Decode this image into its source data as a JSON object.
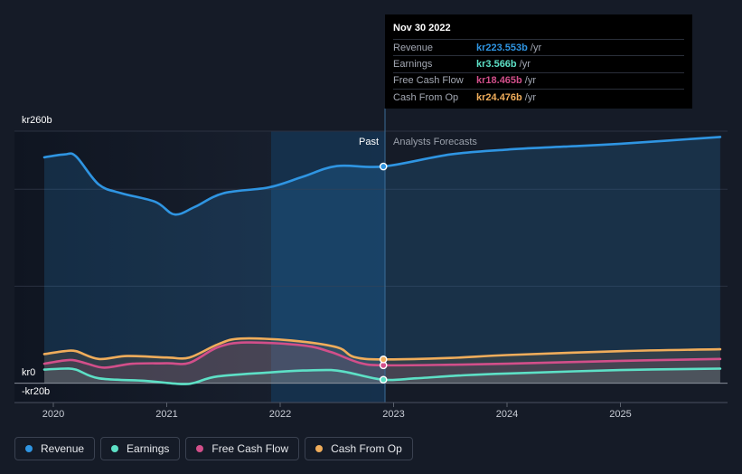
{
  "chart_data": {
    "type": "line",
    "y_top_label": "kr260b",
    "y_zero_label": "kr0",
    "y_bottom_label": "-kr20b",
    "ylim": [
      -20,
      260
    ],
    "x_ticks": [
      "2020",
      "2021",
      "2022",
      "2023",
      "2024",
      "2025"
    ],
    "past_label": "Past",
    "forecast_label": "Analysts Forecasts",
    "series": [
      {
        "name": "Revenue",
        "color": "#2f95e2",
        "points": [
          [
            2019.92,
            233
          ],
          [
            2020.1,
            236
          ],
          [
            2020.2,
            234
          ],
          [
            2020.4,
            205
          ],
          [
            2020.6,
            196
          ],
          [
            2020.9,
            187
          ],
          [
            2021.07,
            174
          ],
          [
            2021.25,
            182
          ],
          [
            2021.5,
            196
          ],
          [
            2021.9,
            202
          ],
          [
            2022.2,
            213
          ],
          [
            2022.5,
            224
          ],
          [
            2022.91,
            223.553
          ],
          [
            2023.5,
            236
          ],
          [
            2024.0,
            241
          ],
          [
            2024.5,
            244
          ],
          [
            2025.0,
            247
          ],
          [
            2025.88,
            254
          ]
        ]
      },
      {
        "name": "Earnings",
        "color": "#5de0c6",
        "points": [
          [
            2019.92,
            14
          ],
          [
            2020.1,
            15
          ],
          [
            2020.2,
            14
          ],
          [
            2020.4,
            5
          ],
          [
            2020.8,
            2.5
          ],
          [
            2020.98,
            0.5
          ],
          [
            2021.15,
            -1
          ],
          [
            2021.25,
            0.5
          ],
          [
            2021.45,
            7
          ],
          [
            2021.9,
            11
          ],
          [
            2022.2,
            13
          ],
          [
            2022.45,
            13.5
          ],
          [
            2022.6,
            11
          ],
          [
            2022.91,
            3.566
          ],
          [
            2023.2,
            5
          ],
          [
            2023.6,
            8
          ],
          [
            2024.0,
            10
          ],
          [
            2025.0,
            13.5
          ],
          [
            2025.88,
            15
          ]
        ]
      },
      {
        "name": "Free Cash Flow",
        "color": "#d24f8a",
        "points": [
          [
            2019.92,
            20
          ],
          [
            2020.15,
            24
          ],
          [
            2020.3,
            20
          ],
          [
            2020.45,
            16
          ],
          [
            2020.7,
            20
          ],
          [
            2021.0,
            20.5
          ],
          [
            2021.2,
            21
          ],
          [
            2021.45,
            37
          ],
          [
            2021.7,
            42
          ],
          [
            2022.2,
            39
          ],
          [
            2022.45,
            32
          ],
          [
            2022.7,
            21
          ],
          [
            2022.91,
            18.465
          ],
          [
            2023.5,
            19
          ],
          [
            2024.0,
            20
          ],
          [
            2025.0,
            23
          ],
          [
            2025.88,
            25
          ]
        ]
      },
      {
        "name": "Cash From Op",
        "color": "#f0ad5b",
        "points": [
          [
            2019.92,
            30
          ],
          [
            2020.1,
            33
          ],
          [
            2020.2,
            33
          ],
          [
            2020.4,
            25
          ],
          [
            2020.65,
            28
          ],
          [
            2021.0,
            26.5
          ],
          [
            2021.2,
            26.5
          ],
          [
            2021.45,
            40
          ],
          [
            2021.65,
            46
          ],
          [
            2022.1,
            44
          ],
          [
            2022.5,
            37
          ],
          [
            2022.65,
            27
          ],
          [
            2022.91,
            24.476
          ],
          [
            2023.5,
            26
          ],
          [
            2024.0,
            29
          ],
          [
            2025.0,
            33
          ],
          [
            2025.88,
            35
          ]
        ]
      }
    ]
  },
  "tooltip": {
    "date": "Nov 30 2022",
    "rows": [
      {
        "name": "Revenue",
        "value": "kr223.553b",
        "unit": "/yr",
        "color": "#2f95e2"
      },
      {
        "name": "Earnings",
        "value": "kr3.566b",
        "unit": "/yr",
        "color": "#5de0c6"
      },
      {
        "name": "Free Cash Flow",
        "value": "kr18.465b",
        "unit": "/yr",
        "color": "#d24f8a"
      },
      {
        "name": "Cash From Op",
        "value": "kr24.476b",
        "unit": "/yr",
        "color": "#f0ad5b"
      }
    ]
  },
  "legend": [
    {
      "label": "Revenue",
      "color": "#2f95e2"
    },
    {
      "label": "Earnings",
      "color": "#5de0c6"
    },
    {
      "label": "Free Cash Flow",
      "color": "#d24f8a"
    },
    {
      "label": "Cash From Op",
      "color": "#f0ad5b"
    }
  ]
}
